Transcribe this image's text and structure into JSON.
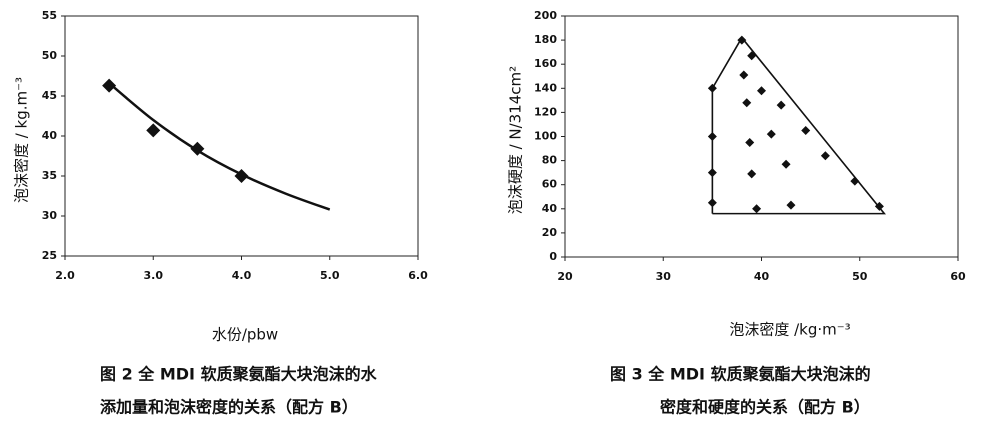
{
  "chart_data": [
    {
      "type": "scatter",
      "x_label": "水份/pbw",
      "y_label": "泡沫密度 / kg.m⁻³",
      "caption": [
        "图 2   全 MDI 软质聚氨酯大块泡沫的水",
        "添加量和泡沫密度的关系（配方 B）"
      ],
      "xlim": [
        2,
        6
      ],
      "xticks": [
        {
          "value": 2,
          "label": "2.0"
        },
        {
          "value": 3,
          "label": "3.0"
        },
        {
          "value": 4,
          "label": "4.0"
        },
        {
          "value": 5,
          "label": "5.0"
        },
        {
          "value": 6,
          "label": "6.0"
        }
      ],
      "ylim": [
        25,
        55
      ],
      "yticks": [
        25,
        30,
        35,
        40,
        45,
        50,
        55
      ],
      "series": [
        {
          "style": "diamond",
          "color": "#111111",
          "x": [
            2.5,
            3.0,
            3.5,
            4.0
          ],
          "values": [
            46.3,
            40.7,
            38.4,
            35.0
          ]
        },
        {
          "style": "line",
          "color": "#111111",
          "x": [
            2.5,
            3.0,
            3.5,
            4.0,
            4.5,
            5.0
          ],
          "values": [
            46.6,
            42.0,
            38.2,
            35.2,
            32.8,
            30.8
          ]
        }
      ]
    },
    {
      "type": "scatter",
      "x_label": "泡沫密度 /kg·m⁻³",
      "y_label": "泡沫硬度 / N/314cm²",
      "caption": [
        "图 3   全 MDI 软质聚氨酯大块泡沫的",
        "密度和硬度的关系（配方 B）"
      ],
      "xlim": [
        20,
        60
      ],
      "xticks": [
        20,
        30,
        40,
        50,
        60
      ],
      "ylim": [
        0,
        200
      ],
      "yticks": [
        0,
        20,
        40,
        60,
        80,
        100,
        120,
        140,
        160,
        180,
        200
      ],
      "series": [
        {
          "style": "diamond",
          "color": "#111111",
          "x": [
            35,
            35,
            35,
            35,
            38,
            38.2,
            38.5,
            39,
            40,
            42,
            38.8,
            41,
            44.5,
            39,
            42.5,
            46.5,
            49.5,
            52,
            39.5,
            43
          ],
          "values": [
            140,
            100,
            70,
            45,
            180,
            151,
            128,
            167,
            138,
            126,
            95,
            102,
            105,
            69,
            77,
            84,
            63,
            42,
            40,
            43
          ]
        },
        {
          "style": "line",
          "color": "#111111",
          "x": [
            35,
            35,
            38,
            52.5,
            35
          ],
          "values": [
            36,
            140,
            182,
            36,
            36
          ]
        }
      ]
    }
  ]
}
